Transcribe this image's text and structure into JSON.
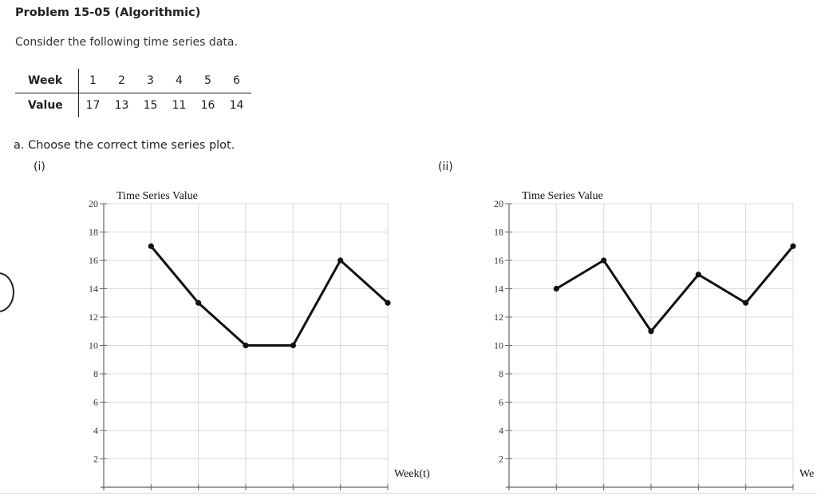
{
  "problem": {
    "title": "Problem 15-05 (Algorithmic)",
    "intro": "Consider the following time series data."
  },
  "table": {
    "row_labels": [
      "Week",
      "Value"
    ],
    "weeks": [
      "1",
      "2",
      "3",
      "4",
      "5",
      "6"
    ],
    "values": [
      "17",
      "13",
      "15",
      "11",
      "16",
      "14"
    ]
  },
  "question": {
    "text": "a.  Choose the correct time series plot.",
    "options": [
      "(i)",
      "(ii)"
    ]
  },
  "chart_data": [
    {
      "type": "line",
      "option": "(i)",
      "ylabel": "Time Series Value",
      "xlabel": "Week(t)",
      "x": [
        1,
        2,
        3,
        4,
        5,
        6
      ],
      "series": [
        {
          "values": [
            17,
            13,
            10,
            10,
            16,
            13
          ]
        }
      ],
      "yticks": [
        "2",
        "4",
        "6",
        "8",
        "10",
        "12",
        "14",
        "16",
        "18",
        "20"
      ],
      "ylim": [
        0,
        20
      ],
      "xlim": [
        0,
        6
      ],
      "grid": true,
      "line_color": "#111111"
    },
    {
      "type": "line",
      "option": "(ii)",
      "ylabel": "Time Series Value",
      "xlabel": "We",
      "x": [
        1,
        2,
        3,
        4,
        5,
        6
      ],
      "series": [
        {
          "values": [
            14,
            16,
            11,
            15,
            13,
            17
          ]
        }
      ],
      "yticks": [
        "2",
        "4",
        "6",
        "8",
        "10",
        "12",
        "14",
        "16",
        "18",
        "20"
      ],
      "ylim": [
        0,
        20
      ],
      "xlim": [
        0,
        6
      ],
      "grid": true,
      "line_color": "#111111"
    }
  ]
}
